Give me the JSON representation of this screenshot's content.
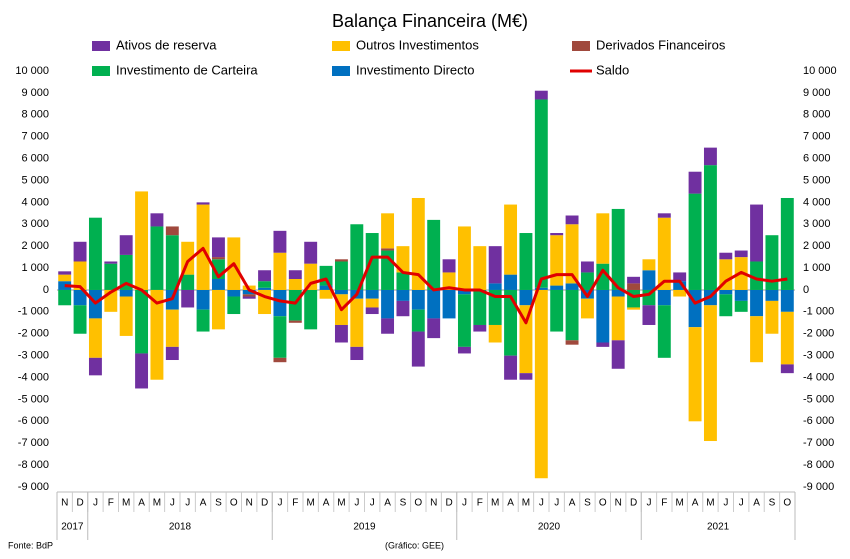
{
  "chart_data": {
    "type": "stacked_bar_line",
    "title": "Balança Financeira (M€)",
    "categories": [
      "N",
      "D",
      "J",
      "F",
      "M",
      "A",
      "M",
      "J",
      "J",
      "A",
      "S",
      "O",
      "N",
      "D",
      "J",
      "F",
      "M",
      "A",
      "M",
      "J",
      "J",
      "A",
      "S",
      "O",
      "N",
      "D",
      "J",
      "F",
      "M",
      "A",
      "M",
      "J",
      "J",
      "A",
      "S",
      "O",
      "N",
      "D",
      "J",
      "F",
      "M",
      "A",
      "M",
      "J",
      "J",
      "A",
      "S",
      "O"
    ],
    "years": [
      {
        "label": "2017",
        "count": 2
      },
      {
        "label": "2018",
        "count": 12
      },
      {
        "label": "2019",
        "count": 12
      },
      {
        "label": "2020",
        "count": 12
      },
      {
        "label": "2021",
        "count": 10
      }
    ],
    "series": [
      {
        "name": "Ativos de reserva",
        "color": "#7030a0",
        "type": "bar",
        "values": [
          150,
          900,
          -800,
          100,
          900,
          -1600,
          600,
          -600,
          -800,
          100,
          900,
          0,
          -100,
          500,
          1000,
          400,
          1000,
          0,
          -800,
          -600,
          -300,
          -700,
          -700,
          -1600,
          -900,
          600,
          -300,
          -300,
          1700,
          -1100,
          -300,
          400,
          100,
          400,
          500,
          -200,
          -1300,
          300,
          -900,
          200,
          400,
          1000,
          800,
          300,
          300,
          2600,
          0,
          -400
        ]
      },
      {
        "name": "Outros Investimentos",
        "color": "#ffc000",
        "type": "bar",
        "values": [
          300,
          1300,
          -1800,
          -1000,
          -1800,
          4500,
          -4100,
          -1700,
          1500,
          3900,
          -1800,
          2400,
          200,
          -1100,
          1700,
          500,
          1200,
          -400,
          -1400,
          -2200,
          -400,
          1600,
          1200,
          4200,
          0,
          800,
          2900,
          2000,
          -800,
          3200,
          -3100,
          -8600,
          2300,
          2700,
          -900,
          2300,
          -2000,
          -100,
          500,
          3300,
          -300,
          -4300,
          -6200,
          1400,
          1500,
          -2100,
          -1500,
          -2400
        ]
      },
      {
        "name": "Derivados Financeiros",
        "color": "#a0493d",
        "type": "bar",
        "values": [
          0,
          0,
          0,
          0,
          0,
          0,
          0,
          400,
          0,
          0,
          100,
          0,
          -100,
          0,
          -200,
          -100,
          0,
          0,
          100,
          0,
          0,
          100,
          0,
          0,
          0,
          0,
          0,
          0,
          0,
          0,
          0,
          0,
          0,
          -200,
          0,
          0,
          0,
          300,
          0,
          0,
          0,
          0,
          0,
          0,
          0,
          0,
          0,
          0
        ]
      },
      {
        "name": "Investimento de Carteira",
        "color": "#00b050",
        "type": "bar",
        "values": [
          -700,
          -1300,
          3300,
          1200,
          1600,
          -2900,
          2900,
          2500,
          700,
          -1000,
          900,
          -800,
          0,
          300,
          -1900,
          -1400,
          -1800,
          900,
          1300,
          3000,
          2600,
          1800,
          800,
          -1000,
          3200,
          0,
          -2400,
          -1600,
          -1600,
          -3000,
          2600,
          8600,
          -1900,
          -2300,
          800,
          1200,
          3700,
          -800,
          -700,
          -2400,
          0,
          4400,
          5700,
          -1000,
          -500,
          1300,
          2500,
          4200
        ]
      },
      {
        "name": "Investimento Directo",
        "color": "#0070c0",
        "type": "bar",
        "values": [
          400,
          -700,
          -1300,
          0,
          -300,
          0,
          0,
          -900,
          0,
          -900,
          500,
          -300,
          -200,
          100,
          -1200,
          0,
          0,
          200,
          -200,
          -400,
          -400,
          -1300,
          -500,
          -900,
          -1300,
          -1300,
          -200,
          0,
          300,
          700,
          -700,
          100,
          200,
          300,
          -400,
          -2400,
          -300,
          0,
          900,
          -700,
          400,
          -1700,
          -700,
          -200,
          -500,
          -1200,
          -500,
          -1000
        ]
      },
      {
        "name": "Saldo",
        "color": "#e00000",
        "type": "line",
        "values": [
          200,
          150,
          -600,
          -100,
          300,
          0,
          -600,
          -400,
          1300,
          1900,
          600,
          1200,
          0,
          -300,
          -500,
          -600,
          300,
          500,
          -900,
          -200,
          1500,
          1500,
          800,
          700,
          0,
          100,
          0,
          0,
          -300,
          -300,
          -1500,
          500,
          700,
          700,
          -300,
          900,
          100,
          -300,
          -200,
          400,
          400,
          -600,
          -300,
          400,
          800,
          500,
          400,
          500
        ]
      }
    ],
    "ylim": [
      -9000,
      10000
    ],
    "yticks": [
      {
        "value": -9000,
        "label": "-9 000"
      },
      {
        "value": -8000,
        "label": "-8 000"
      },
      {
        "value": -7000,
        "label": "-7 000"
      },
      {
        "value": -6000,
        "label": "-6 000"
      },
      {
        "value": -5000,
        "label": "-5 000"
      },
      {
        "value": -4000,
        "label": "-4 000"
      },
      {
        "value": -3000,
        "label": "-3 000"
      },
      {
        "value": -2000,
        "label": "-2 000"
      },
      {
        "value": -1000,
        "label": "-1 000"
      },
      0,
      {
        "value": 1000,
        "label": "1 000"
      },
      {
        "value": 2000,
        "label": "2 000"
      },
      {
        "value": 3000,
        "label": "3 000"
      },
      {
        "value": 4000,
        "label": "4 000"
      },
      {
        "value": 5000,
        "label": "5 000"
      },
      {
        "value": 6000,
        "label": "6 000"
      },
      {
        "value": 7000,
        "label": "7 000"
      },
      {
        "value": 8000,
        "label": "8 000"
      },
      {
        "value": 9000,
        "label": "9 000"
      },
      {
        "value": 10000,
        "label": "10 000"
      }
    ],
    "source": "Fonte: BdP",
    "credit": "(Gráfico: GEE)"
  }
}
